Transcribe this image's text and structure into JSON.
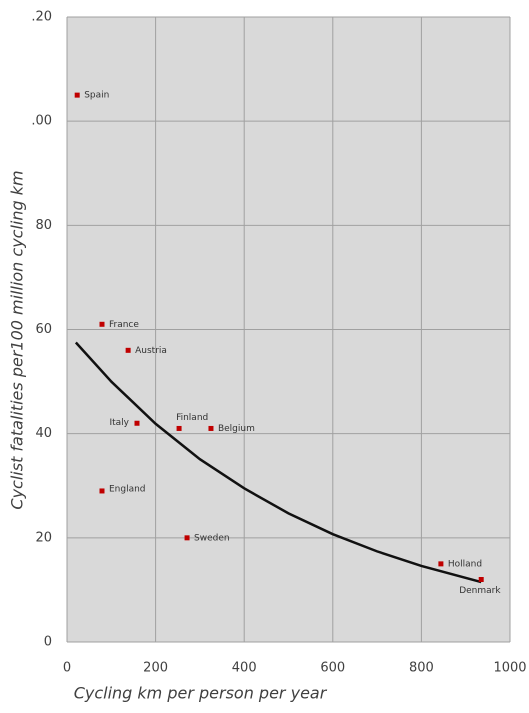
{
  "chart_data": {
    "type": "scatter",
    "xlabel": "Cycling km per person per year",
    "ylabel": "Cyclist fatalities per100 million cycling km",
    "xlim": [
      0,
      1000
    ],
    "ylim": [
      0,
      120
    ],
    "xticks": [
      0,
      200,
      400,
      600,
      800,
      1000
    ],
    "yticks": [
      0,
      20,
      40,
      60,
      80,
      {
        "value": 100,
        "label": ".00"
      },
      {
        "value": 120,
        "label": ".20"
      }
    ],
    "grid": true,
    "points": {
      "color": "#c00000",
      "labels": [
        "Spain",
        "France",
        "Austria",
        "Italy",
        "Finland",
        "Belgium",
        "England",
        "Sweden",
        "Holland",
        "Denmark"
      ],
      "x": [
        23,
        79,
        138,
        158,
        253,
        325,
        79,
        271,
        844,
        935
      ],
      "values": [
        105,
        61,
        56,
        42,
        41,
        41,
        29,
        20,
        15,
        12
      ]
    },
    "trend": {
      "color": "#111111",
      "x": [
        20,
        100,
        200,
        300,
        400,
        500,
        600,
        700,
        800,
        935
      ],
      "values": [
        57.5,
        50.0,
        41.9,
        35.1,
        29.5,
        24.7,
        20.7,
        17.4,
        14.6,
        11.5
      ]
    }
  }
}
